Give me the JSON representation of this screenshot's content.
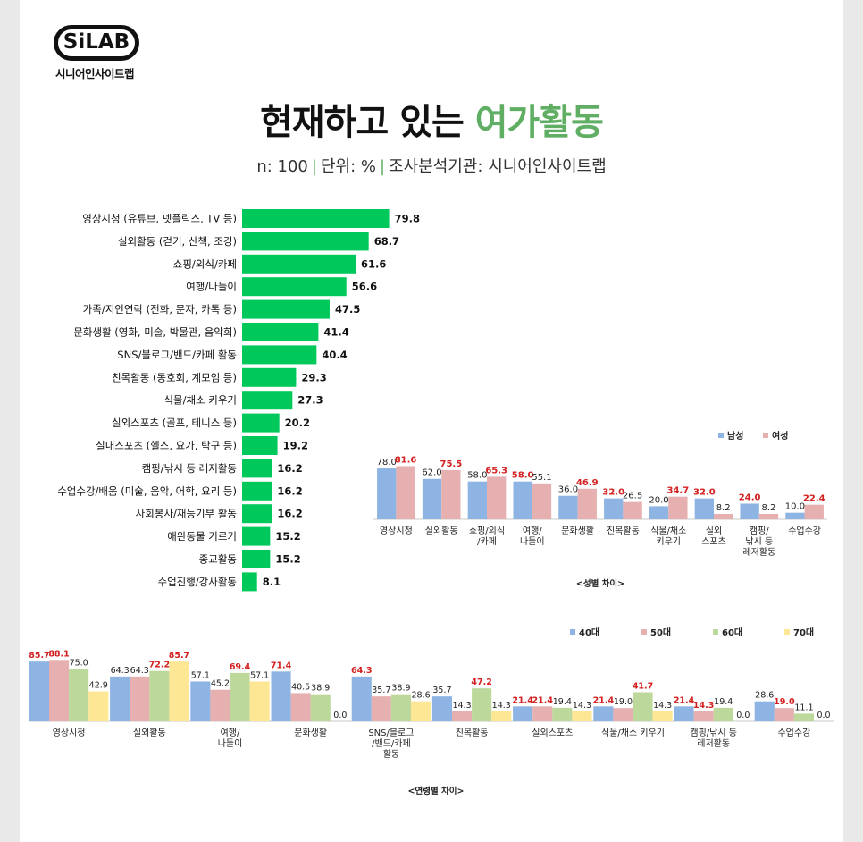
{
  "logo": {
    "badge": "SiLAB",
    "name": "시니어인사이트랩"
  },
  "header": {
    "title_main": "현재하고 있는 ",
    "title_accent": "여가활동",
    "sub_n": "n: 100",
    "sub_unit": "단위: %",
    "sub_org": "조사분석기관: 시니어인사이트랩",
    "separator": "|"
  },
  "colors": {
    "green": "#00c85a",
    "male": "#8eb4e3",
    "female": "#e6b0b0",
    "age40": "#8eb4e3",
    "age50": "#e6b0b0",
    "age60": "#bcd89a",
    "age70": "#fde694",
    "highlight": "#d42020",
    "accent_title": "#5fae64"
  },
  "chart_data": [
    {
      "type": "bar",
      "orientation": "horizontal",
      "categories": [
        "영상시청 (유튜브, 넷플릭스, TV 등)",
        "실외활동 (걷기, 산책, 조깅)",
        "쇼핑/외식/카페",
        "여행/나들이",
        "가족/지인연락 (전화, 문자, 카톡 등)",
        "문화생활 (영화, 미술, 박물관, 음악회)",
        "SNS/블로그/밴드/카페 활동",
        "친목활동 (동호회, 계모임 등)",
        "식물/채소 키우기",
        "실외스포츠 (골프, 테니스 등)",
        "실내스포츠 (헬스, 요가, 탁구 등)",
        "캠핑/낚시 등 레저활동",
        "수업수강/배움 (미술, 음악, 어학, 요리 등)",
        "사회봉사/재능기부 활동",
        "애완동물 기르기",
        "종교활동",
        "수업진행/강사활동"
      ],
      "values": [
        79.8,
        68.7,
        61.6,
        56.6,
        47.5,
        41.4,
        40.4,
        29.3,
        27.3,
        20.2,
        19.2,
        16.2,
        16.2,
        16.2,
        15.2,
        15.2,
        8.1
      ],
      "value_labels": [
        "79.8",
        "68.7",
        "61.6",
        "56.6",
        "47.5",
        "41.4",
        "40.4",
        "29.3",
        "27.3",
        "20.2",
        "19.2",
        "16.2",
        "16.2",
        "16.2",
        "15.2",
        "15.2",
        "8.1"
      ],
      "xlim": [
        0,
        100
      ]
    },
    {
      "type": "bar",
      "title": "<성별 차이>",
      "categories": [
        [
          "영상시청"
        ],
        [
          "실외활동"
        ],
        [
          "쇼핑/외식",
          "/카페"
        ],
        [
          "여행/",
          "나들이"
        ],
        [
          "문화생활"
        ],
        [
          "친목활동"
        ],
        [
          "식물/채소",
          "키우기"
        ],
        [
          "실외",
          "스포츠"
        ],
        [
          "캠핑/",
          "낚시 등",
          "레저활동"
        ],
        [
          "수업수강"
        ]
      ],
      "series": [
        {
          "name": "남성",
          "values": [
            78.0,
            62.0,
            58.0,
            58.0,
            36.0,
            32.0,
            20.0,
            32.0,
            24.0,
            10.0
          ],
          "labels": [
            "78.0",
            "62.0",
            "58.0",
            "58.0",
            "36.0",
            "32.0",
            "20.0",
            "32.0",
            "24.0",
            "10.0"
          ],
          "highlight": [
            false,
            false,
            false,
            true,
            false,
            true,
            false,
            true,
            true,
            false
          ]
        },
        {
          "name": "여성",
          "values": [
            81.6,
            75.5,
            65.3,
            55.1,
            46.9,
            26.5,
            34.7,
            8.2,
            8.2,
            22.4
          ],
          "labels": [
            "81.6",
            "75.5",
            "65.3",
            "55.1",
            "46.9",
            "26.5",
            "34.7",
            "8.2",
            "8.2",
            "22.4"
          ],
          "highlight": [
            true,
            true,
            true,
            false,
            true,
            false,
            true,
            false,
            false,
            true
          ]
        }
      ],
      "legend": "top-right",
      "ylim": [
        0,
        100
      ]
    },
    {
      "type": "bar",
      "title": "<연령별 차이>",
      "categories": [
        [
          "영상시청"
        ],
        [
          "실외활동"
        ],
        [
          "여행/",
          "나들이"
        ],
        [
          "문화생활"
        ],
        [
          "SNS/블로그",
          "/밴드/카페",
          "활동"
        ],
        [
          "친목활동"
        ],
        [
          "실외스포츠"
        ],
        [
          "식물/채소 키우기"
        ],
        [
          "캠핑/낚시 등",
          "레저활동"
        ],
        [
          "수업수강"
        ]
      ],
      "series": [
        {
          "name": "40대",
          "values": [
            85.7,
            64.3,
            57.1,
            71.4,
            64.3,
            35.7,
            21.4,
            21.4,
            21.4,
            28.6
          ],
          "labels": [
            "85.7",
            "64.3",
            "57.1",
            "71.4",
            "64.3",
            "35.7",
            "21.4",
            "21.4",
            "21.4",
            "28.6"
          ],
          "highlight": [
            true,
            false,
            false,
            true,
            true,
            false,
            true,
            true,
            true,
            false
          ]
        },
        {
          "name": "50대",
          "values": [
            88.1,
            64.3,
            45.2,
            40.5,
            35.7,
            14.3,
            21.4,
            19.0,
            14.3,
            19.0
          ],
          "labels": [
            "88.1",
            "64.3",
            "45.2",
            "40.5",
            "35.7",
            "14.3",
            "21.4",
            "19.0",
            "14.3",
            "19.0"
          ],
          "highlight": [
            true,
            false,
            false,
            false,
            false,
            false,
            true,
            false,
            true,
            true
          ]
        },
        {
          "name": "60대",
          "values": [
            75.0,
            72.2,
            69.4,
            38.9,
            38.9,
            47.2,
            19.4,
            41.7,
            19.4,
            11.1
          ],
          "labels": [
            "75.0",
            "72.2",
            "69.4",
            "38.9",
            "38.9",
            "47.2",
            "19.4",
            "41.7",
            "19.4",
            "11.1"
          ],
          "highlight": [
            false,
            true,
            true,
            false,
            false,
            true,
            false,
            true,
            false,
            false
          ]
        },
        {
          "name": "70대",
          "values": [
            42.9,
            85.7,
            57.1,
            0.0,
            28.6,
            14.3,
            14.3,
            14.3,
            0.0,
            0.0
          ],
          "labels": [
            "42.9",
            "85.7",
            "57.1",
            "0.0",
            "28.6",
            "14.3",
            "14.3",
            "14.3",
            "0.0",
            "0.0"
          ],
          "highlight": [
            false,
            true,
            false,
            false,
            false,
            false,
            false,
            false,
            false,
            false
          ]
        }
      ],
      "legend": "top-right",
      "ylim": [
        0,
        100
      ]
    }
  ]
}
